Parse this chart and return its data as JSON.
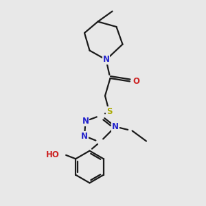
{
  "background_color": "#e8e8e8",
  "line_color": "#1a1a1a",
  "N_color": "#2222cc",
  "O_color": "#cc2222",
  "S_color": "#aaaa00",
  "figsize": [
    3.0,
    3.0
  ],
  "dpi": 100,
  "xlim": [
    0,
    10
  ],
  "ylim": [
    0,
    10
  ]
}
